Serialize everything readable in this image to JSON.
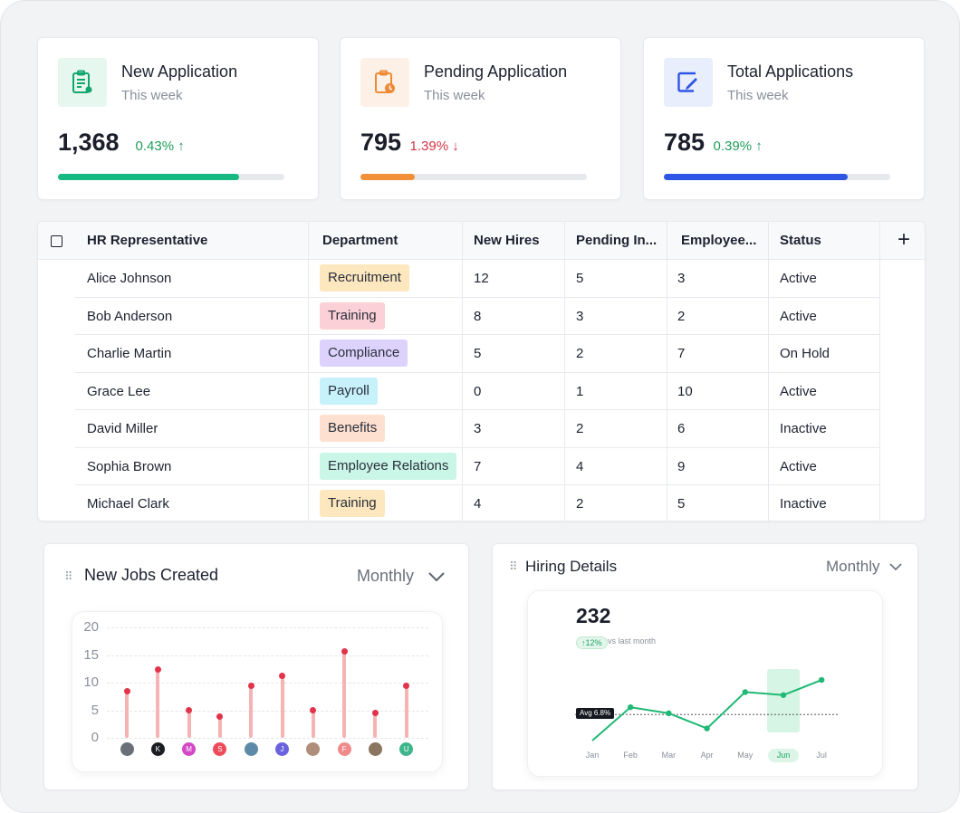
{
  "stats": [
    {
      "title": "New Application",
      "subtitle": "This week",
      "value": "1,368",
      "delta": "0.43%",
      "arrow": "↑",
      "trend": "up",
      "progress": 0.8,
      "color": "#16b981",
      "icon": "clipboard-list-icon",
      "icon_bg": "#e5f7ef",
      "icon_color": "#12a66f"
    },
    {
      "title": "Pending Application",
      "subtitle": "This week",
      "value": "795",
      "delta": "1.39%",
      "arrow": "↓",
      "trend": "down",
      "progress": 0.24,
      "color": "#f2903a",
      "icon": "clipboard-clock-icon",
      "icon_bg": "#fdf0e6",
      "icon_color": "#ef8a34"
    },
    {
      "title": "Total Applications",
      "subtitle": "This week",
      "value": "785",
      "delta": "0.39%",
      "arrow": "↑",
      "trend": "up",
      "progress": 0.81,
      "color": "#2f55e4",
      "icon": "edit-square-icon",
      "icon_bg": "#e9eefc",
      "icon_color": "#2f55e4"
    }
  ],
  "table": {
    "headers": [
      "HR Representative",
      "Department",
      "New Hires",
      "Pending In...",
      "Employee...",
      "Status"
    ],
    "rows": [
      {
        "name": "Alice Johnson",
        "dept": "Recruitment",
        "dept_color": "#fde7bf",
        "hires": "12",
        "pending": "5",
        "employees": "3",
        "status": "Active"
      },
      {
        "name": "Bob Anderson",
        "dept": "Training",
        "dept_color": "#fbd0d6",
        "hires": "8",
        "pending": "3",
        "employees": "2",
        "status": "Active"
      },
      {
        "name": "Charlie Martin",
        "dept": "Compliance",
        "dept_color": "#dcd2fb",
        "hires": "5",
        "pending": "2",
        "employees": "7",
        "status": "On Hold"
      },
      {
        "name": "Grace Lee",
        "dept": "Payroll",
        "dept_color": "#c7f1fb",
        "hires": "0",
        "pending": "1",
        "employees": "10",
        "status": "Active"
      },
      {
        "name": "David Miller",
        "dept": "Benefits",
        "dept_color": "#fde0cf",
        "hires": "3",
        "pending": "2",
        "employees": "6",
        "status": "Inactive"
      },
      {
        "name": "Sophia Brown",
        "dept": "Employee Relations",
        "dept_color": "#c9f6e6",
        "hires": "7",
        "pending": "4",
        "employees": "9",
        "status": "Active"
      },
      {
        "name": "Michael Clark",
        "dept": "Training",
        "dept_color": "#fde7bf",
        "hires": "4",
        "pending": "2",
        "employees": "5",
        "status": "Inactive"
      }
    ]
  },
  "jobs": {
    "title": "New Jobs Created",
    "period": "Monthly",
    "grip": "⠿",
    "chevron": "chevron-down-icon",
    "avatars": [
      {
        "label": "",
        "color": "#6b6f78"
      },
      {
        "label": "K",
        "color": "#1b1d22"
      },
      {
        "label": "M",
        "color": "#d449c7"
      },
      {
        "label": "S",
        "color": "#ee4b5a"
      },
      {
        "label": "",
        "color": "#5d8aa8"
      },
      {
        "label": "J",
        "color": "#6a63e0"
      },
      {
        "label": "",
        "color": "#b08f7a"
      },
      {
        "label": "F",
        "color": "#f08a8a"
      },
      {
        "label": "",
        "color": "#8a7560"
      },
      {
        "label": "U",
        "color": "#3fb58c"
      }
    ]
  },
  "hiring": {
    "title": "Hiring Details",
    "period": "Monthly",
    "grip": "⠿",
    "chevron": "chevron-down-icon",
    "value": "232",
    "badge": "↑12%",
    "badge_suffix": "vs last month",
    "avg_label": "Avg 6.8%",
    "highlight": "Jun"
  },
  "chart_data": [
    {
      "type": "bar",
      "categories": [
        "",
        "K",
        "M",
        "S",
        "",
        "J",
        "",
        "F",
        "",
        "U"
      ],
      "values": [
        8.5,
        12.3,
        5,
        3.8,
        9.5,
        11.2,
        5,
        15.7,
        4.5,
        9.5
      ],
      "ylim": [
        0,
        20
      ],
      "yticks": [
        "20",
        "15",
        "10",
        "5",
        "0"
      ],
      "grid": true,
      "color": "#e2334b"
    },
    {
      "type": "line",
      "categories": [
        "Jan",
        "Feb",
        "Mar",
        "Apr",
        "May",
        "Jun",
        "Jul"
      ],
      "values": [
        2.5,
        8,
        7,
        4.5,
        10.5,
        10,
        12.5
      ],
      "avg": 6.8,
      "ylim": [
        2.5,
        14
      ],
      "color": "#1fb874"
    }
  ]
}
